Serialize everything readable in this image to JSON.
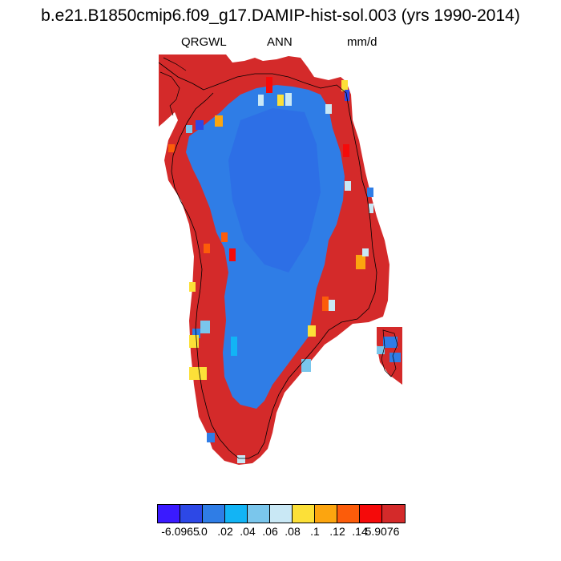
{
  "title": "b.e21.B1850cmip6.f09_g17.DAMIP-hist-sol.003 (yrs 1990-2014)",
  "subtitle": {
    "left": "QRGWL",
    "center": "ANN",
    "right": "mm/d"
  },
  "colorbar": {
    "colors": [
      "#3a1aff",
      "#2d48e6",
      "#2f7de6",
      "#12b4f5",
      "#7ac6ec",
      "#c9e8f5",
      "#fce038",
      "#fca50f",
      "#fc5c0a",
      "#f50a0a",
      "#d42a2a"
    ],
    "labels": [
      "-6.0965",
      ".0",
      ".02",
      ".04",
      ".06",
      ".08",
      ".1",
      ".12",
      ".14",
      "5.9076"
    ]
  },
  "map": {
    "region": "Greenland",
    "land_color": "#d42a2a",
    "interior_color": "#2f7de6"
  }
}
